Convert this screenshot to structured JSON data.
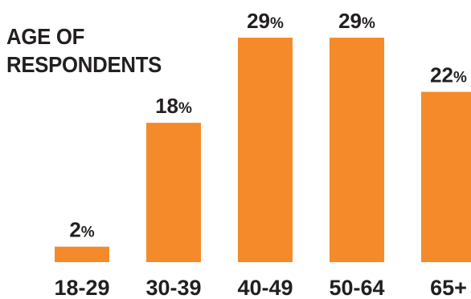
{
  "chart_data": {
    "type": "bar",
    "title_lines": [
      "AGE OF",
      "RESPONDENTS"
    ],
    "categories": [
      "18-29",
      "30-39",
      "40-49",
      "50-64",
      "65+"
    ],
    "values": [
      2,
      18,
      29,
      29,
      22
    ],
    "data_labels": [
      {
        "number": "2",
        "unit": "%"
      },
      {
        "number": "18",
        "unit": "%"
      },
      {
        "number": "29",
        "unit": "%"
      },
      {
        "number": "29",
        "unit": "%"
      },
      {
        "number": "22",
        "unit": "%"
      }
    ],
    "value_unit": "%",
    "ylim": [
      0,
      29
    ],
    "grid": false,
    "legend": "none",
    "bar_color": "#f58a2a",
    "text_color": "#231f20"
  }
}
